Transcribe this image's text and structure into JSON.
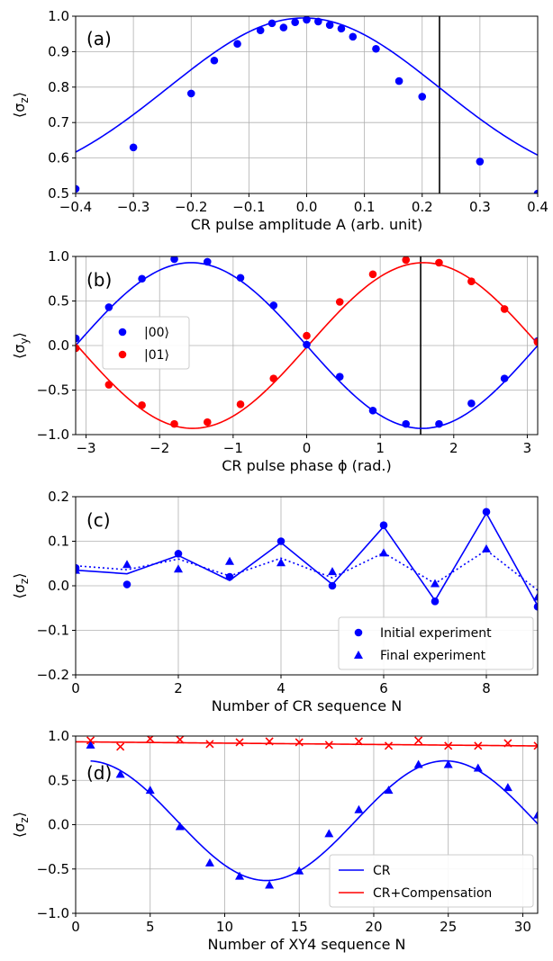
{
  "chart_data": [
    {
      "type": "scatter",
      "panel_label": "(a)",
      "xlabel": "CR pulse amplitude A (arb. unit)",
      "ylabel": "⟨σz⟩",
      "ylabel_main": "⟨σ",
      "ylabel_sub": "z",
      "ylabel_close": "⟩",
      "xlim": [
        -0.4,
        0.4
      ],
      "ylim": [
        0.5,
        1.0
      ],
      "xticks": [
        -0.4,
        -0.3,
        -0.2,
        -0.1,
        0.0,
        0.1,
        0.2,
        0.3,
        0.4
      ],
      "xtick_labels": [
        "−0.4",
        "−0.3",
        "−0.2",
        "−0.1",
        "0.0",
        "0.1",
        "0.2",
        "0.3",
        "0.4"
      ],
      "yticks": [
        0.5,
        0.6,
        0.7,
        0.8,
        0.9,
        1.0
      ],
      "ytick_labels": [
        "0.5",
        "0.6",
        "0.7",
        "0.8",
        "0.9",
        "1.0"
      ],
      "grid": true,
      "vline": 0.23,
      "series": [
        {
          "color": "#0000ff",
          "marker": "circle",
          "x": [
            -0.4,
            -0.3,
            -0.2,
            -0.16,
            -0.12,
            -0.08,
            -0.06,
            -0.04,
            -0.02,
            0.0,
            0.02,
            0.04,
            0.06,
            0.08,
            0.12,
            0.16,
            0.2,
            0.3,
            0.4
          ],
          "y": [
            0.513,
            0.63,
            0.782,
            0.875,
            0.922,
            0.96,
            0.98,
            0.968,
            0.983,
            0.99,
            0.985,
            0.975,
            0.965,
            0.942,
            0.908,
            0.817,
            0.773,
            0.59,
            0.5
          ]
        }
      ],
      "fits": [
        {
          "color": "#0000ff",
          "kind": "gauss",
          "mu": -0.005,
          "sigma": 0.235,
          "amp": 0.5,
          "base": 0.495
        }
      ]
    },
    {
      "type": "scatter",
      "panel_label": "(b)",
      "xlabel": "CR pulse phase ϕ (rad.)",
      "ylabel": "⟨σy⟩",
      "ylabel_main": "⟨σ",
      "ylabel_sub": "y",
      "ylabel_close": "⟩",
      "xlim": [
        -3.14159,
        3.14159
      ],
      "ylim": [
        -1.0,
        1.0
      ],
      "xticks": [
        -3,
        -2,
        -1,
        0,
        1,
        2,
        3
      ],
      "xtick_labels": [
        "−3",
        "−2",
        "−1",
        "0",
        "1",
        "2",
        "3"
      ],
      "yticks": [
        -1.0,
        -0.5,
        0.0,
        0.5,
        1.0
      ],
      "ytick_labels": [
        "−1.0",
        "−0.5",
        "0.0",
        "0.5",
        "1.0"
      ],
      "grid": true,
      "vline": 1.55,
      "legend_position": "center-left",
      "legend": [
        {
          "label": "|00⟩",
          "color": "#0000ff",
          "marker": "circle"
        },
        {
          "label": "|01⟩",
          "color": "#ff0000",
          "marker": "circle"
        }
      ],
      "series": [
        {
          "name": "|00⟩",
          "color": "#0000ff",
          "marker": "circle",
          "x": [
            -3.14,
            -2.69,
            -2.24,
            -1.8,
            -1.35,
            -0.9,
            -0.45,
            0.0,
            0.45,
            0.9,
            1.35,
            1.8,
            2.24,
            2.69,
            3.14
          ],
          "y": [
            0.08,
            0.43,
            0.75,
            0.97,
            0.94,
            0.76,
            0.45,
            0.01,
            -0.35,
            -0.73,
            -0.88,
            -0.88,
            -0.65,
            -0.37,
            0.05
          ]
        },
        {
          "name": "|01⟩",
          "color": "#ff0000",
          "marker": "circle",
          "x": [
            -3.14,
            -2.69,
            -2.24,
            -1.8,
            -1.35,
            -0.9,
            -0.45,
            0.0,
            0.45,
            0.9,
            1.35,
            1.8,
            2.24,
            2.69,
            3.14
          ],
          "y": [
            -0.03,
            -0.44,
            -0.67,
            -0.88,
            -0.86,
            -0.66,
            -0.37,
            0.11,
            0.49,
            0.8,
            0.96,
            0.93,
            0.72,
            0.41,
            0.04
          ]
        }
      ],
      "fits": [
        {
          "color": "#0000ff",
          "kind": "sin",
          "amp": -0.93,
          "freq": 1,
          "phase": 0.0,
          "base": 0.0
        },
        {
          "color": "#ff0000",
          "kind": "sin",
          "amp": 0.93,
          "freq": 1,
          "phase": -0.02,
          "base": 0.0
        }
      ]
    },
    {
      "type": "scatter",
      "panel_label": "(c)",
      "xlabel": "Number of CR sequence N",
      "ylabel": "⟨σz⟩",
      "ylabel_main": "⟨σ",
      "ylabel_sub": "z",
      "ylabel_close": "⟩",
      "xlim": [
        0,
        9
      ],
      "ylim": [
        -0.2,
        0.2
      ],
      "xticks": [
        0,
        2,
        4,
        6,
        8
      ],
      "xtick_labels": [
        "0",
        "2",
        "4",
        "6",
        "8"
      ],
      "yticks": [
        -0.2,
        -0.1,
        0.0,
        0.1,
        0.2
      ],
      "ytick_labels": [
        "−0.2",
        "−0.1",
        "0.0",
        "0.1",
        "0.2"
      ],
      "grid": true,
      "legend_position": "lower-right",
      "legend": [
        {
          "label": "Initial experiment",
          "color": "#0000ff",
          "marker": "circle"
        },
        {
          "label": "Final experiment",
          "color": "#0000ff",
          "marker": "triangle"
        }
      ],
      "series": [
        {
          "name": "Initial experiment",
          "color": "#0000ff",
          "marker": "circle",
          "x": [
            0,
            1,
            2,
            3,
            4,
            5,
            6,
            7,
            8,
            9
          ],
          "y": [
            0.04,
            0.003,
            0.072,
            0.02,
            0.1,
            0.0,
            0.136,
            -0.035,
            0.166,
            -0.047
          ]
        },
        {
          "name": "Final experiment",
          "color": "#0000ff",
          "marker": "triangle",
          "x": [
            0,
            1,
            2,
            3,
            4,
            5,
            6,
            7,
            8,
            9
          ],
          "y": [
            0.035,
            0.048,
            0.038,
            0.055,
            0.052,
            0.032,
            0.074,
            0.005,
            0.083,
            -0.025
          ]
        }
      ],
      "lines": [
        {
          "color": "#0000ff",
          "style": "solid",
          "x": [
            0,
            1,
            2,
            3,
            4,
            5,
            6,
            7,
            8,
            9
          ],
          "y": [
            0.035,
            0.027,
            0.068,
            0.012,
            0.097,
            0.003,
            0.133,
            -0.033,
            0.163,
            -0.045
          ]
        },
        {
          "color": "#0000ff",
          "style": "dotted",
          "x": [
            0,
            1,
            2,
            3,
            4,
            5,
            6,
            7,
            8,
            9
          ],
          "y": [
            0.045,
            0.036,
            0.06,
            0.022,
            0.062,
            0.018,
            0.074,
            0.005,
            0.08,
            -0.01
          ]
        }
      ]
    },
    {
      "type": "scatter",
      "panel_label": "(d)",
      "xlabel": "Number of XY4 sequence N",
      "ylabel": "⟨σz⟩",
      "ylabel_main": "⟨σ",
      "ylabel_sub": "z",
      "ylabel_close": "⟩",
      "xlim": [
        0,
        31
      ],
      "ylim": [
        -1.0,
        1.0
      ],
      "xticks": [
        0,
        5,
        10,
        15,
        20,
        25,
        30
      ],
      "xtick_labels": [
        "0",
        "5",
        "10",
        "15",
        "20",
        "25",
        "30"
      ],
      "yticks": [
        -1.0,
        -0.5,
        0.0,
        0.5,
        1.0
      ],
      "ytick_labels": [
        "−1.0",
        "−0.5",
        "0.0",
        "0.5",
        "1.0"
      ],
      "grid": true,
      "legend_position": "lower-right",
      "legend": [
        {
          "label": "CR",
          "color": "#0000ff",
          "marker": "line"
        },
        {
          "label": "CR+Compensation",
          "color": "#ff0000",
          "marker": "line"
        }
      ],
      "series": [
        {
          "name": "CR",
          "color": "#0000ff",
          "marker": "triangle",
          "x": [
            1,
            3,
            5,
            7,
            9,
            11,
            13,
            15,
            17,
            19,
            21,
            23,
            25,
            27,
            29,
            31
          ],
          "y": [
            0.9,
            0.57,
            0.39,
            -0.02,
            -0.43,
            -0.58,
            -0.68,
            -0.52,
            -0.1,
            0.17,
            0.39,
            0.68,
            0.68,
            0.64,
            0.42,
            0.11
          ]
        },
        {
          "name": "CR+Compensation",
          "color": "#ff0000",
          "marker": "x",
          "x": [
            1,
            3,
            5,
            7,
            9,
            11,
            13,
            15,
            17,
            19,
            21,
            23,
            25,
            27,
            29,
            31
          ],
          "y": [
            0.95,
            0.88,
            0.97,
            0.96,
            0.91,
            0.93,
            0.94,
            0.93,
            0.9,
            0.94,
            0.89,
            0.95,
            0.89,
            0.89,
            0.92,
            0.89
          ]
        }
      ],
      "fits": [
        {
          "color": "#0000ff",
          "kind": "cos",
          "amp": 0.675,
          "period": 24,
          "center": 0.8,
          "base": 0.045,
          "range": [
            1,
            31
          ]
        },
        {
          "color": "#ff0000",
          "kind": "linear",
          "a": 0.935,
          "b": -0.0015,
          "range": [
            0,
            31
          ]
        }
      ]
    }
  ]
}
